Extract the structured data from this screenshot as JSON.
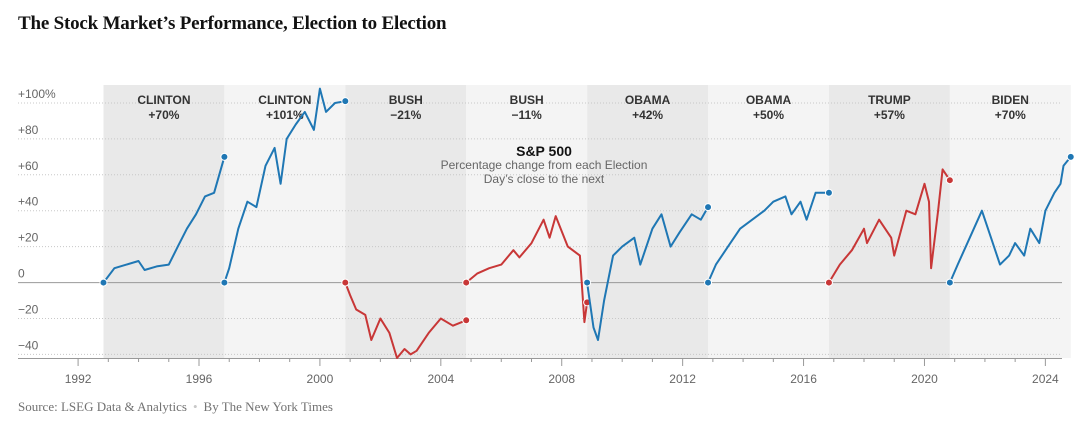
{
  "title": "The Stock Market’s Performance, Election to Election",
  "footer": {
    "source": "Source: LSEG Data & Analytics",
    "byline": "By The New York Times"
  },
  "colors": {
    "democrat": "#1f77b4",
    "republican": "#c83737",
    "band_dark": "#e9e9e9",
    "band_light": "#f4f4f4"
  },
  "chart_data": {
    "type": "line",
    "title": "S&P 500",
    "subtitle": "Percentage change from each Election Day’s close to the next",
    "xlabel": "",
    "ylabel": "",
    "xlim": [
      1991.6,
      2024.55
    ],
    "ylim": [
      -42,
      110
    ],
    "y_ticks": [
      {
        "value": 100,
        "label": "+100%"
      },
      {
        "value": 80,
        "label": "+80"
      },
      {
        "value": 60,
        "label": "+60"
      },
      {
        "value": 40,
        "label": "+40"
      },
      {
        "value": 20,
        "label": "+20"
      },
      {
        "value": 0,
        "label": "0"
      },
      {
        "value": -20,
        "label": "−20"
      },
      {
        "value": -40,
        "label": "−40"
      }
    ],
    "x_ticks": [
      1992,
      1996,
      2000,
      2004,
      2008,
      2012,
      2016,
      2020,
      2024
    ],
    "grid": true,
    "legend": "none",
    "terms": [
      {
        "name": "CLINTON",
        "label": "+70%",
        "party": "D",
        "x": [
          1992.84,
          1993.2,
          1993.6,
          1994.0,
          1994.2,
          1994.6,
          1995.0,
          1995.3,
          1995.6,
          1995.9,
          1996.2,
          1996.5,
          1996.84
        ],
        "y": [
          0,
          8,
          10,
          12,
          7,
          9,
          10,
          20,
          30,
          38,
          48,
          50,
          70
        ]
      },
      {
        "name": "CLINTON",
        "label": "+101%",
        "party": "D",
        "x": [
          1996.84,
          1997.0,
          1997.3,
          1997.6,
          1997.9,
          1998.2,
          1998.5,
          1998.7,
          1998.9,
          1999.2,
          1999.5,
          1999.8,
          2000.0,
          2000.2,
          2000.5,
          2000.84
        ],
        "y": [
          0,
          8,
          30,
          45,
          42,
          65,
          75,
          55,
          80,
          88,
          95,
          85,
          108,
          95,
          100,
          101
        ]
      },
      {
        "name": "BUSH",
        "label": "−21%",
        "party": "R",
        "x": [
          2000.84,
          2001.0,
          2001.2,
          2001.5,
          2001.7,
          2002.0,
          2002.3,
          2002.55,
          2002.8,
          2003.0,
          2003.2,
          2003.6,
          2004.0,
          2004.4,
          2004.84
        ],
        "y": [
          0,
          -7,
          -15,
          -18,
          -32,
          -20,
          -28,
          -42,
          -37,
          -40,
          -38,
          -28,
          -20,
          -24,
          -21
        ]
      },
      {
        "name": "BUSH",
        "label": "−11%",
        "party": "R",
        "x": [
          2004.84,
          2005.2,
          2005.6,
          2006.0,
          2006.4,
          2006.6,
          2007.0,
          2007.4,
          2007.6,
          2007.8,
          2008.2,
          2008.6,
          2008.75,
          2008.84
        ],
        "y": [
          0,
          5,
          8,
          10,
          18,
          14,
          22,
          35,
          25,
          37,
          20,
          15,
          -22,
          -11
        ]
      },
      {
        "name": "OBAMA",
        "label": "+42%",
        "party": "D",
        "x": [
          2008.84,
          2009.05,
          2009.2,
          2009.4,
          2009.7,
          2010.0,
          2010.4,
          2010.6,
          2011.0,
          2011.3,
          2011.6,
          2011.9,
          2012.3,
          2012.6,
          2012.84
        ],
        "y": [
          0,
          -25,
          -32,
          -10,
          15,
          20,
          25,
          10,
          30,
          38,
          20,
          28,
          38,
          35,
          42
        ]
      },
      {
        "name": "OBAMA",
        "label": "+50%",
        "party": "D",
        "x": [
          2012.84,
          2013.1,
          2013.5,
          2013.9,
          2014.3,
          2014.7,
          2015.0,
          2015.4,
          2015.6,
          2015.9,
          2016.1,
          2016.4,
          2016.84
        ],
        "y": [
          0,
          10,
          20,
          30,
          35,
          40,
          45,
          48,
          38,
          45,
          35,
          50,
          50
        ]
      },
      {
        "name": "TRUMP",
        "label": "+57%",
        "party": "R",
        "x": [
          2016.84,
          2017.2,
          2017.6,
          2018.0,
          2018.1,
          2018.5,
          2018.9,
          2019.0,
          2019.4,
          2019.7,
          2020.0,
          2020.15,
          2020.22,
          2020.45,
          2020.6,
          2020.84
        ],
        "y": [
          0,
          10,
          18,
          30,
          22,
          35,
          25,
          15,
          40,
          38,
          55,
          45,
          8,
          40,
          63,
          57
        ]
      },
      {
        "name": "BIDEN",
        "label": "+70%",
        "party": "D",
        "x": [
          2020.84,
          2021.1,
          2021.5,
          2021.9,
          2022.2,
          2022.5,
          2022.8,
          2023.0,
          2023.3,
          2023.5,
          2023.8,
          2024.0,
          2024.3,
          2024.5,
          2024.6,
          2024.84
        ],
        "y": [
          0,
          10,
          25,
          40,
          25,
          10,
          15,
          22,
          15,
          30,
          22,
          40,
          50,
          55,
          65,
          70
        ]
      }
    ]
  }
}
